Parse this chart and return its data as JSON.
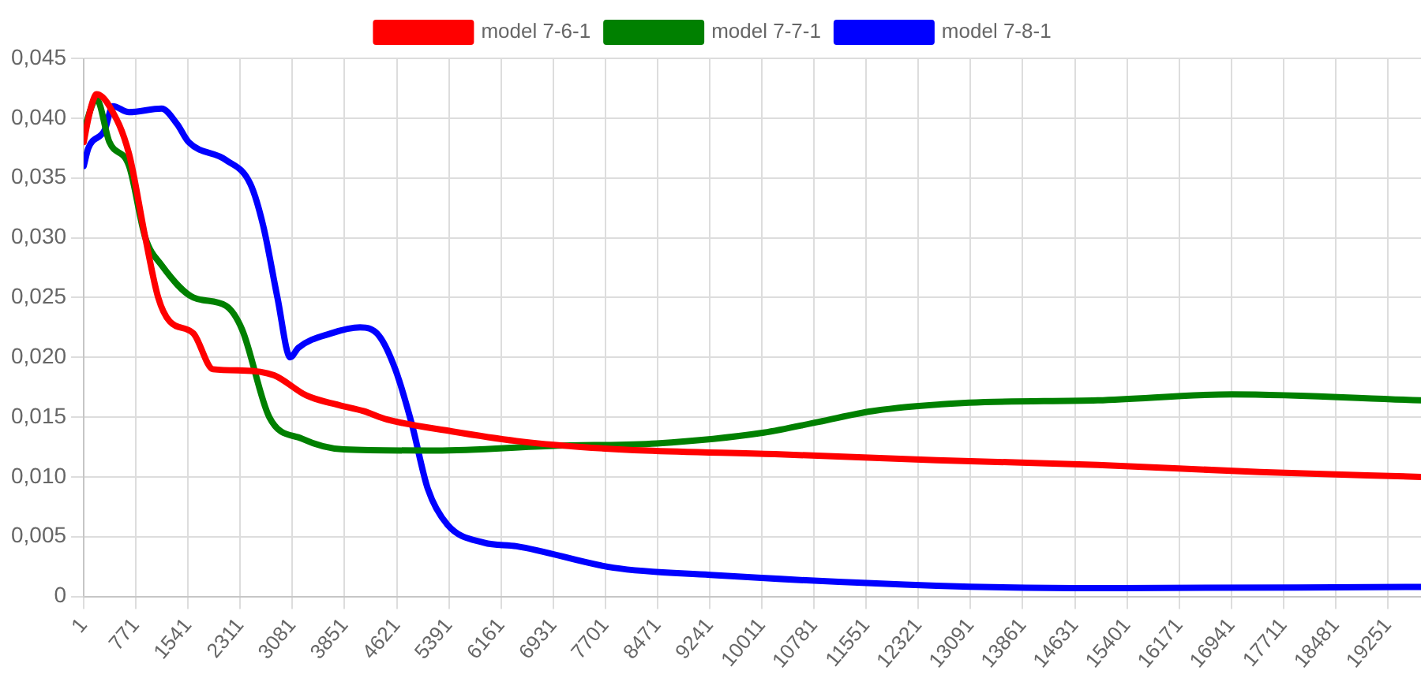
{
  "chart_data": {
    "type": "line",
    "legend": "top",
    "grid": true,
    "marker": "none",
    "xlim": [
      1,
      19740
    ],
    "xticks": [
      1,
      771,
      1541,
      2311,
      3081,
      3851,
      4621,
      5391,
      6161,
      6931,
      7701,
      8471,
      9241,
      10011,
      10781,
      11551,
      12321,
      13091,
      13861,
      14631,
      15401,
      16171,
      16941,
      17711,
      18481,
      19251
    ],
    "ylim": [
      0,
      0.045
    ],
    "yticks": [
      {
        "value": 0,
        "label": "0"
      },
      {
        "value": 0.005,
        "label": "0,005"
      },
      {
        "value": 0.01,
        "label": "0,010"
      },
      {
        "value": 0.015,
        "label": "0,015"
      },
      {
        "value": 0.02,
        "label": "0,020"
      },
      {
        "value": 0.025,
        "label": "0,025"
      },
      {
        "value": 0.03,
        "label": "0,030"
      },
      {
        "value": 0.035,
        "label": "0,035"
      },
      {
        "value": 0.04,
        "label": "0,040"
      },
      {
        "value": 0.045,
        "label": "0,045"
      }
    ],
    "series": [
      {
        "name": "model 7-6-1",
        "color": "#ff0000",
        "x": [
          1,
          70,
          140,
          190,
          380,
          670,
          910,
          1100,
          1270,
          1620,
          1910,
          2340,
          2810,
          3290,
          3770,
          4130,
          4480,
          5440,
          6390,
          7340,
          8300,
          10200,
          12590,
          14970,
          17360,
          19740
        ],
        "values": [
          0.038,
          0.04,
          0.0415,
          0.042,
          0.041,
          0.037,
          0.03,
          0.025,
          0.023,
          0.022,
          0.019,
          0.0189,
          0.0185,
          0.0168,
          0.016,
          0.0155,
          0.0148,
          0.0138,
          0.013,
          0.0125,
          0.0122,
          0.0119,
          0.0114,
          0.011,
          0.0104,
          0.01
        ]
      },
      {
        "name": "model 7-7-1",
        "color": "#008000",
        "x": [
          1,
          190,
          380,
          670,
          910,
          1150,
          1620,
          2100,
          2340,
          2740,
          3220,
          3840,
          5200,
          6940,
          8460,
          10040,
          10850,
          11640,
          13070,
          14970,
          16950,
          19740
        ],
        "values": [
          0.039,
          0.0416,
          0.038,
          0.036,
          0.03,
          0.0277,
          0.025,
          0.0243,
          0.0223,
          0.015,
          0.0132,
          0.0123,
          0.0122,
          0.0126,
          0.0128,
          0.0137,
          0.0146,
          0.0155,
          0.0162,
          0.0164,
          0.0169,
          0.0164
        ]
      },
      {
        "name": "model 7-8-1",
        "color": "#0000ff",
        "x": [
          1,
          70,
          310,
          430,
          670,
          1150,
          1380,
          1550,
          2100,
          2460,
          2650,
          2860,
          3050,
          3170,
          3650,
          4080,
          4360,
          4600,
          4840,
          5080,
          5370,
          5910,
          6390,
          7820,
          9250,
          12590,
          14970,
          19740
        ],
        "values": [
          0.036,
          0.0375,
          0.039,
          0.041,
          0.0405,
          0.0408,
          0.0395,
          0.038,
          0.0365,
          0.0345,
          0.031,
          0.025,
          0.02,
          0.0208,
          0.022,
          0.0225,
          0.0218,
          0.019,
          0.0145,
          0.009,
          0.006,
          0.0045,
          0.0042,
          0.0024,
          0.0018,
          0.0009,
          0.0007,
          0.0008
        ]
      }
    ]
  }
}
